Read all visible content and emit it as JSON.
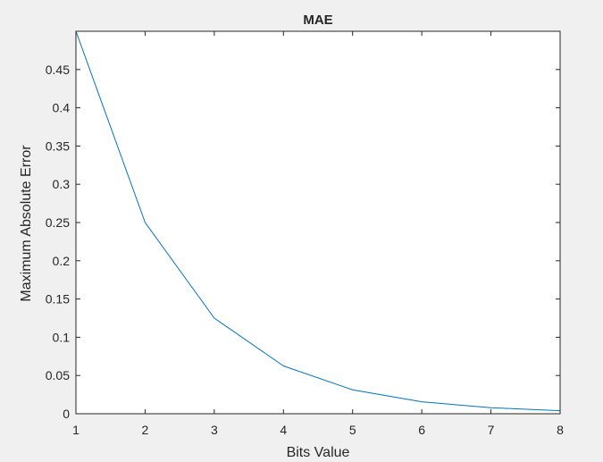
{
  "colors": {
    "figure_bg": "#f0f0f0",
    "axes_bg": "#ffffff",
    "axes_edge": "#262626",
    "line": "#0072bd",
    "text": "#262626"
  },
  "chart_data": {
    "type": "line",
    "title": "MAE",
    "xlabel": "Bits Value",
    "ylabel": "Maximum Absolute Error",
    "xlim": [
      1,
      8
    ],
    "ylim": [
      0,
      0.5
    ],
    "grid": false,
    "box": true,
    "x_ticks": [
      1,
      2,
      3,
      4,
      5,
      6,
      7,
      8
    ],
    "x_tick_labels": [
      "1",
      "2",
      "3",
      "4",
      "5",
      "6",
      "7",
      "8"
    ],
    "y_ticks": [
      0,
      0.05,
      0.1,
      0.15,
      0.2,
      0.25,
      0.3,
      0.35,
      0.4,
      0.45
    ],
    "y_tick_labels": [
      "0",
      "0.05",
      "0.1",
      "0.15",
      "0.2",
      "0.25",
      "0.3",
      "0.35",
      "0.4",
      "0.45"
    ],
    "series": [
      {
        "x": [
          1,
          2,
          3,
          4,
          5,
          6,
          7,
          8
        ],
        "values": [
          0.5,
          0.25,
          0.125,
          0.0625,
          0.03125,
          0.015625,
          0.0078125,
          0.00390625
        ]
      }
    ]
  }
}
